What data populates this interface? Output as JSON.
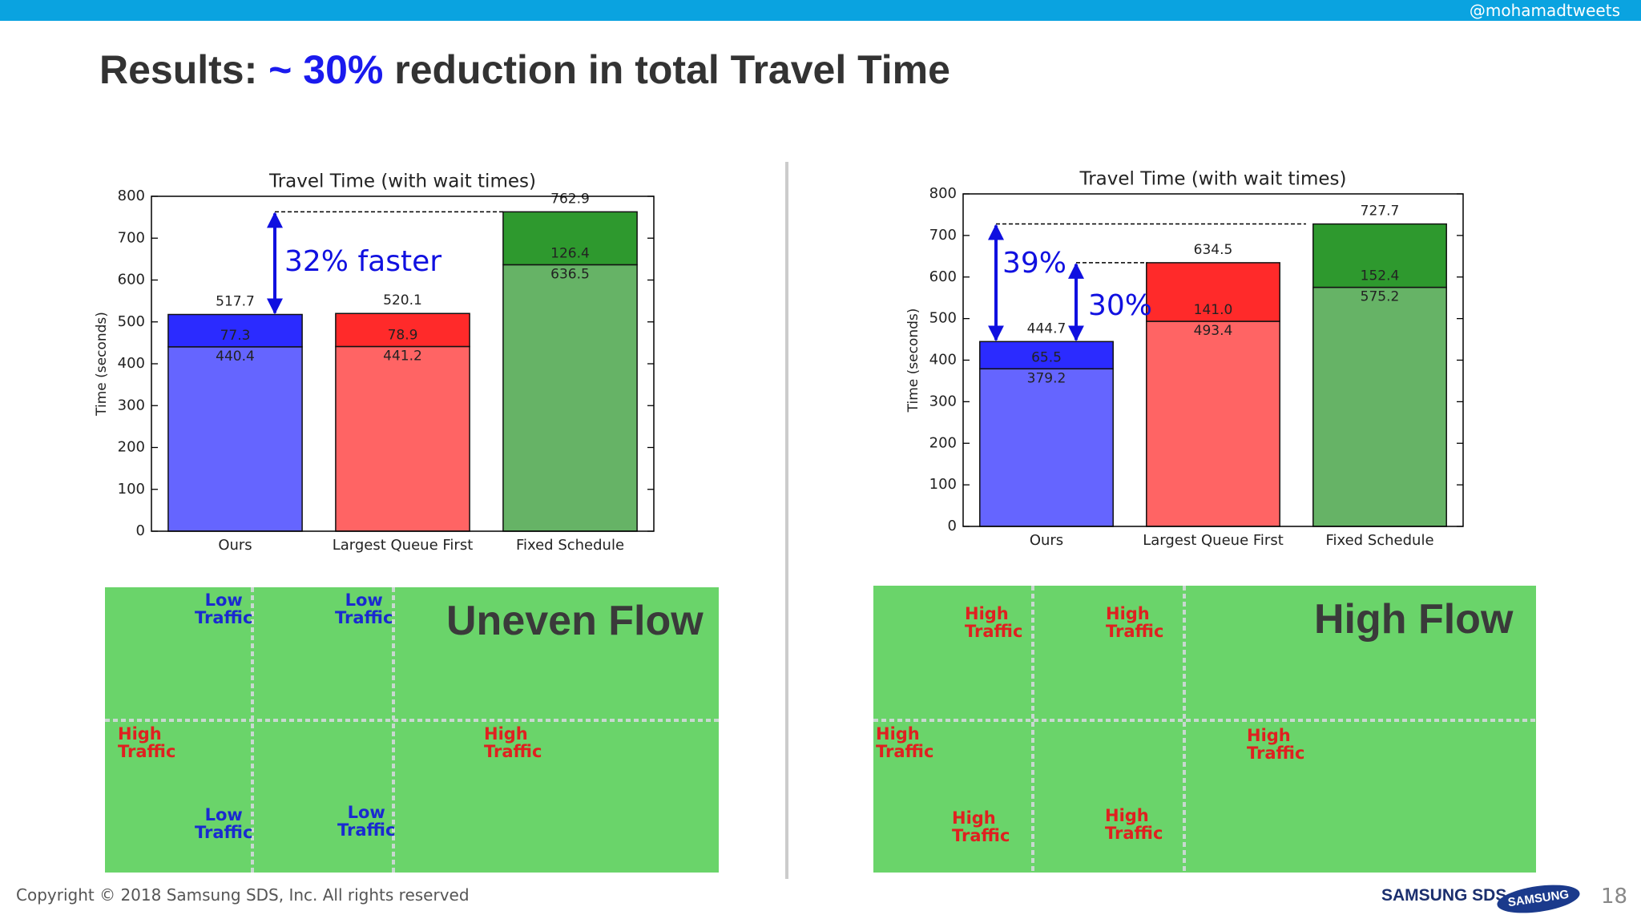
{
  "twitter": "@mohamadtweets",
  "title": {
    "prefix": "Results: ",
    "highlight": "~ 30%",
    "suffix": " reduction in total Travel Time"
  },
  "chart_data": [
    {
      "type": "stacked_bar",
      "title": "Travel Time (with wait times)",
      "y_label": "Time (seconds)",
      "categories": [
        "Ours",
        "Largest Queue First",
        "Fixed Schedule"
      ],
      "series": [
        {
          "values": [
            440.4,
            441.2,
            636.5
          ],
          "colors": [
            "#6565ff",
            "#ff6464",
            "#66b366"
          ]
        },
        {
          "values": [
            77.3,
            78.9,
            126.4
          ],
          "colors": [
            "#2b2bff",
            "#ff2a2a",
            "#2e992e"
          ]
        }
      ],
      "totals": [
        517.7,
        520.1,
        762.9
      ],
      "ylim": [
        0,
        800
      ],
      "yticks": [
        0,
        100,
        200,
        300,
        400,
        500,
        600,
        700,
        800
      ],
      "annotations": [
        "32% faster"
      ]
    },
    {
      "type": "stacked_bar",
      "title": "Travel Time (with wait times)",
      "y_label": "Time (seconds)",
      "categories": [
        "Ours",
        "Largest Queue First",
        "Fixed Schedule"
      ],
      "series": [
        {
          "values": [
            379.2,
            493.4,
            575.2
          ],
          "colors": [
            "#6565ff",
            "#ff6464",
            "#66b366"
          ]
        },
        {
          "values": [
            65.5,
            141.0,
            152.4
          ],
          "value_labels": [
            "65.5",
            "141.0",
            "152.4"
          ],
          "colors": [
            "#2b2bff",
            "#ff2a2a",
            "#2e992e"
          ]
        }
      ],
      "totals": [
        444.7,
        634.5,
        727.7
      ],
      "ylim": [
        0,
        800
      ],
      "yticks": [
        0,
        100,
        200,
        300,
        400,
        500,
        600,
        700,
        800
      ],
      "annotations": [
        "39%",
        "30%"
      ]
    }
  ],
  "panels": [
    {
      "heading": "Uneven Flow",
      "labels": [
        {
          "text": "Low Traffic",
          "level": "low"
        },
        {
          "text": "Low Traffic",
          "level": "low"
        },
        {
          "text": "Low Traffic",
          "level": "low"
        },
        {
          "text": "Low Traffic",
          "level": "low"
        },
        {
          "text": "High Traffic",
          "level": "high"
        },
        {
          "text": "High Traffic",
          "level": "high"
        }
      ]
    },
    {
      "heading": "High Flow",
      "labels": [
        {
          "text": "High Traffic",
          "level": "high"
        },
        {
          "text": "High Traffic",
          "level": "high"
        },
        {
          "text": "High Traffic",
          "level": "high"
        },
        {
          "text": "High Traffic",
          "level": "high"
        },
        {
          "text": "High Traffic",
          "level": "high"
        },
        {
          "text": "High Traffic",
          "level": "high"
        }
      ]
    }
  ],
  "footer": {
    "copyright": "Copyright © 2018 Samsung SDS, Inc. All rights reserved",
    "brand": "SAMSUNG SDS",
    "logo": "SAMSUNG",
    "page": "18"
  }
}
